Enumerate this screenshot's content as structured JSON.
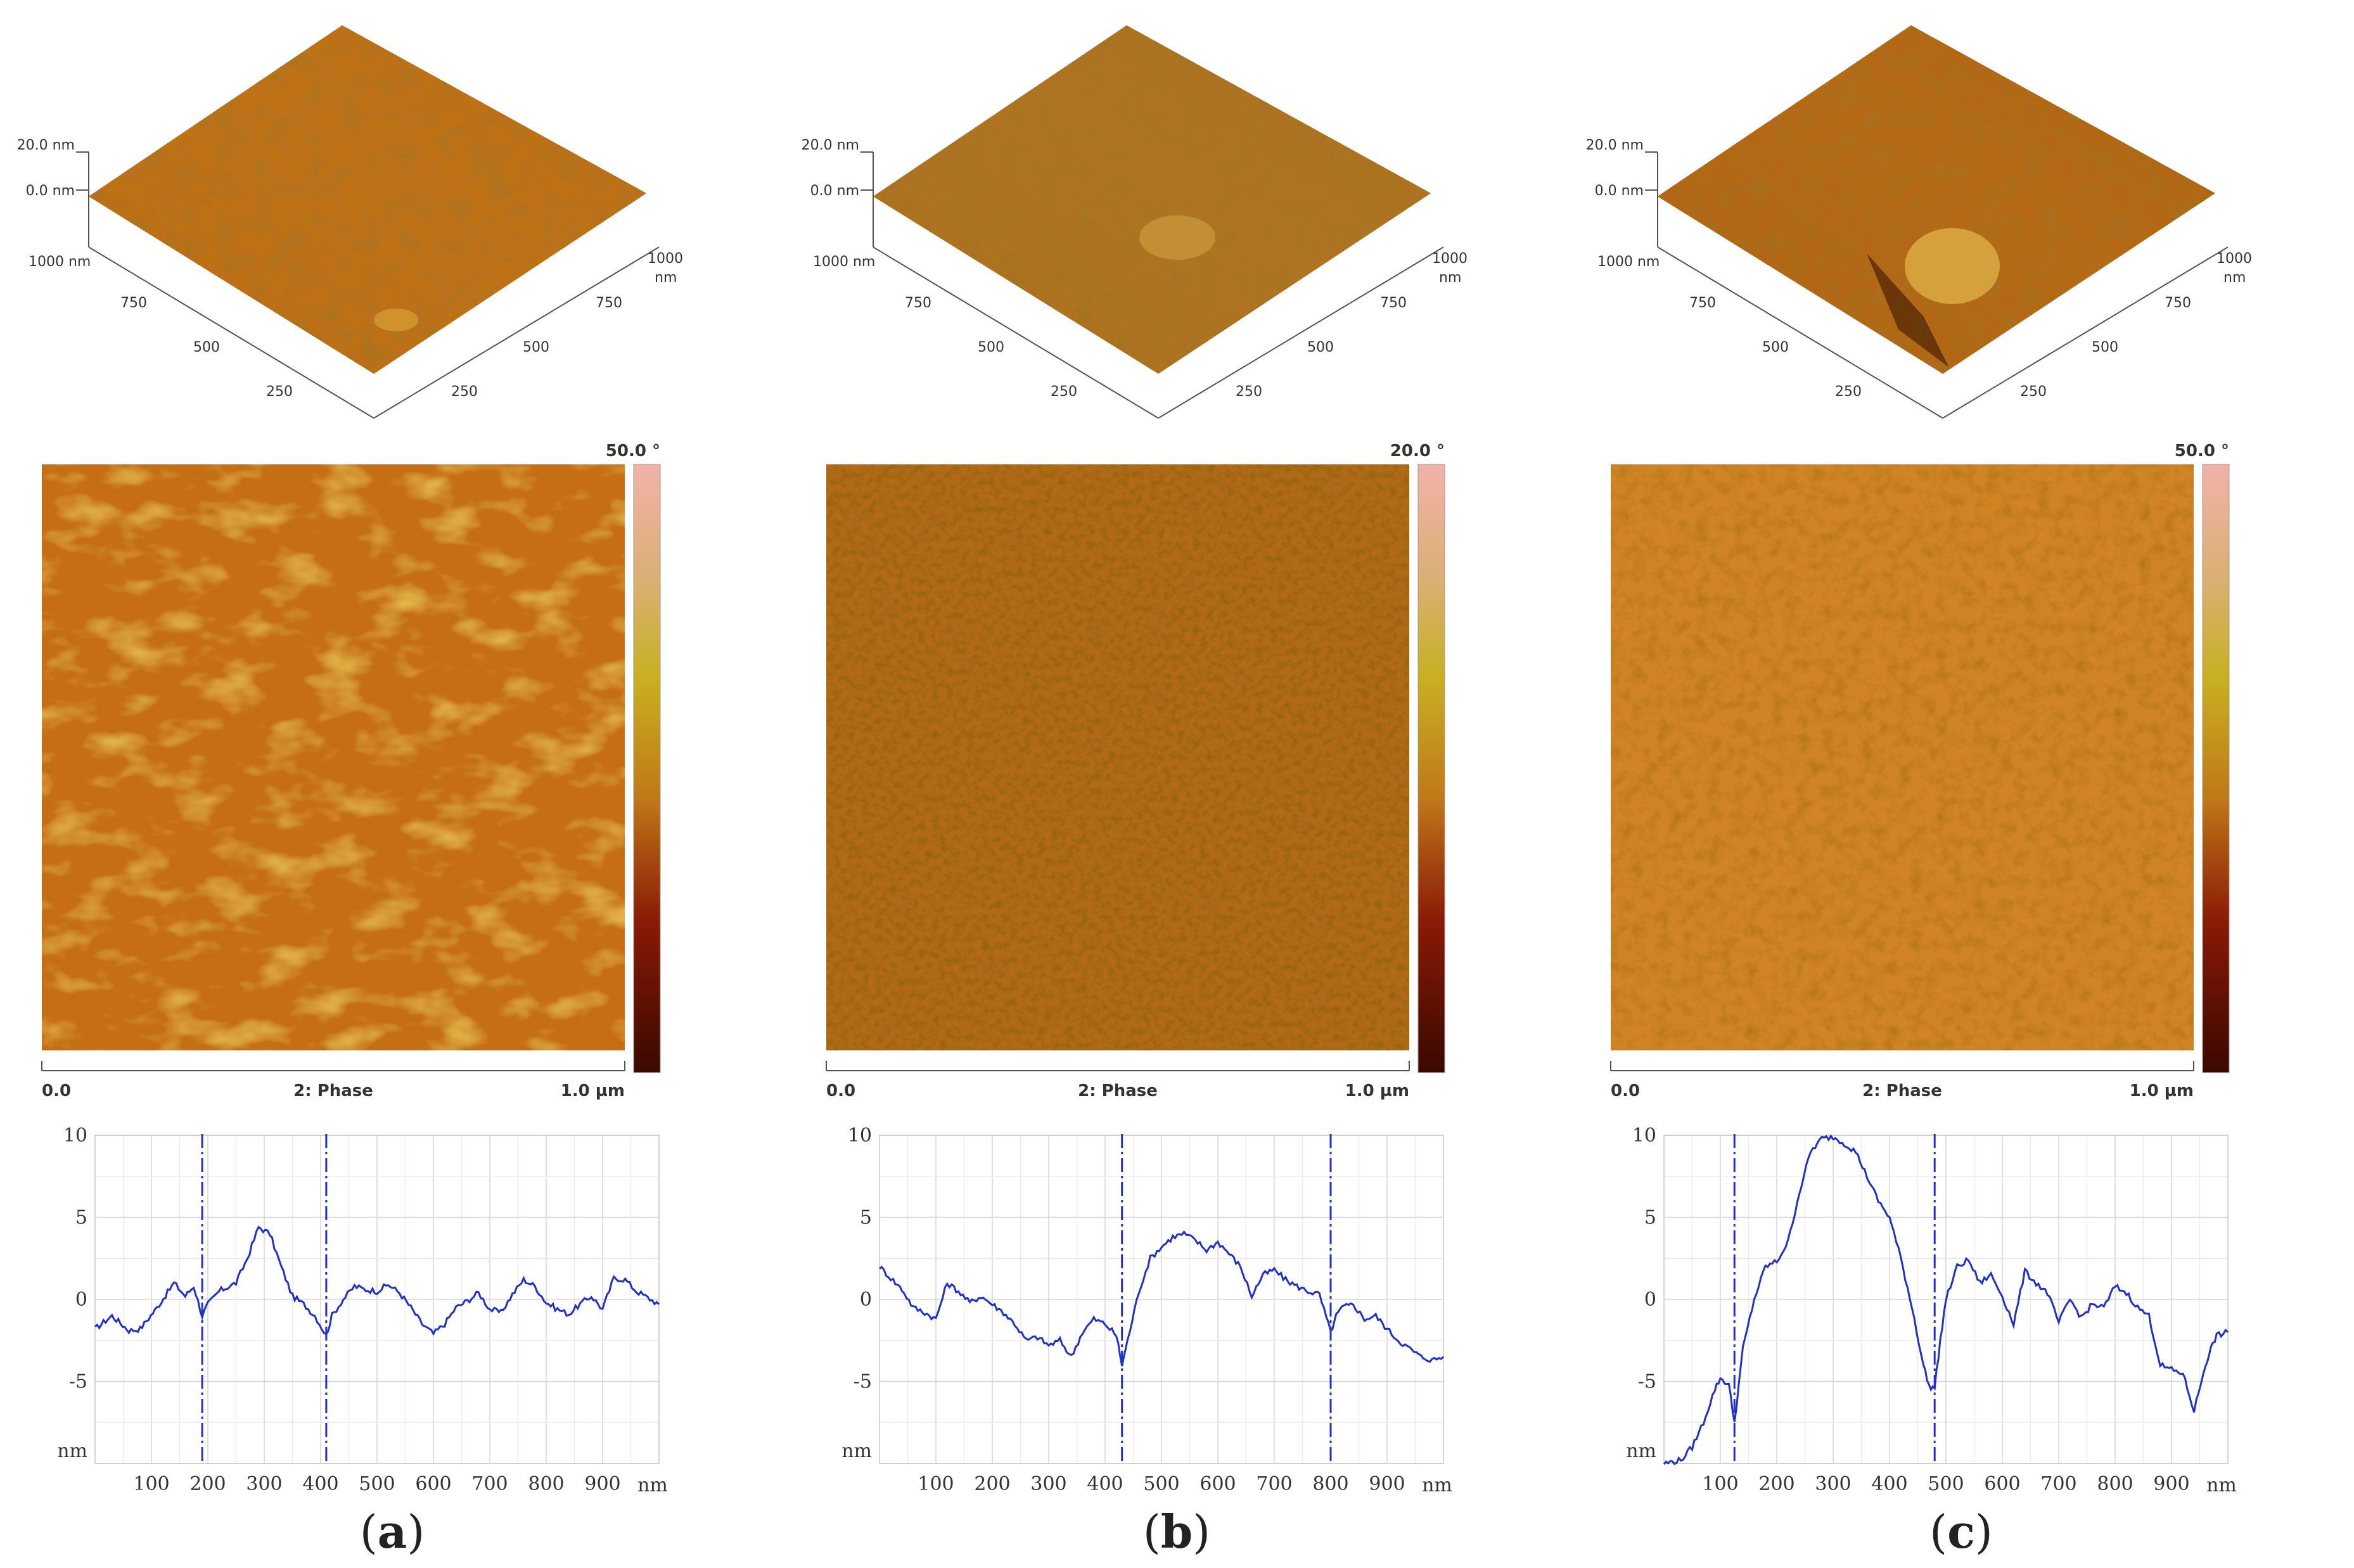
{
  "panels": [
    {
      "id": "a",
      "caption": {
        "open": "(",
        "letter": "a",
        "close": ")"
      },
      "surface3d": {
        "z_labels": [
          "20.0 nm",
          "0.0 nm"
        ],
        "left_axis_labels": [
          "1000 nm",
          "750",
          "500",
          "250"
        ],
        "right_axis_labels": [
          "1000",
          "nm",
          "750",
          "500",
          "250"
        ],
        "colors": [
          "#5a2a04",
          "#9a4a08",
          "#c07316",
          "#e0a83a"
        ]
      },
      "phase": {
        "scale_max": "50.0 °",
        "x_start": "0.0",
        "x_end": "1.0 µm",
        "title": "2: Phase",
        "style": "smooth"
      },
      "chart_data": {
        "type": "line",
        "ylabel": "nm",
        "xlabel": "nm",
        "xlim": [
          0,
          1000
        ],
        "ylim": [
          -10,
          10
        ],
        "yticks": [
          "10",
          "5",
          "0",
          "-5"
        ],
        "xticks": [
          "100",
          "200",
          "300",
          "400",
          "500",
          "600",
          "700",
          "800",
          "900"
        ],
        "cursors": [
          190,
          410
        ],
        "x": [
          0,
          30,
          60,
          80,
          110,
          140,
          160,
          175,
          190,
          200,
          220,
          250,
          270,
          290,
          310,
          330,
          350,
          370,
          390,
          410,
          420,
          440,
          460,
          480,
          500,
          520,
          540,
          560,
          580,
          600,
          620,
          640,
          660,
          680,
          700,
          720,
          740,
          760,
          780,
          800,
          820,
          840,
          860,
          880,
          900,
          920,
          940,
          960,
          980,
          1000
        ],
        "y": [
          -1.8,
          -1.0,
          -1.9,
          -1.8,
          -0.5,
          1.0,
          0.2,
          0.8,
          -1.0,
          -0.3,
          0.5,
          1.0,
          2.5,
          4.4,
          4.0,
          2.0,
          0.2,
          -0.3,
          -1.0,
          -2.2,
          -1.0,
          0.0,
          0.8,
          0.6,
          0.5,
          0.9,
          0.4,
          -0.5,
          -1.5,
          -2.1,
          -1.5,
          -0.5,
          -0.1,
          0.4,
          -0.6,
          -0.8,
          0.3,
          1.2,
          0.8,
          -0.2,
          -0.6,
          -0.9,
          -0.3,
          0.2,
          -0.6,
          1.3,
          1.2,
          0.5,
          0.1,
          -0.3
        ]
      }
    },
    {
      "id": "b",
      "caption": {
        "open": "(",
        "letter": "b",
        "close": ")"
      },
      "surface3d": {
        "z_labels": [
          "20.0 nm",
          "0.0 nm"
        ],
        "left_axis_labels": [
          "1000 nm",
          "750",
          "500",
          "250"
        ],
        "right_axis_labels": [
          "1000",
          "nm",
          "750",
          "500",
          "250"
        ],
        "colors": [
          "#4e2a06",
          "#8a4c0c",
          "#b07420",
          "#d8aa48"
        ]
      },
      "phase": {
        "scale_max": "20.0 °",
        "x_start": "0.0",
        "x_end": "1.0 µm",
        "title": "2: Phase",
        "style": "grainy"
      },
      "chart_data": {
        "type": "line",
        "ylabel": "nm",
        "xlabel": "nm",
        "xlim": [
          0,
          1000
        ],
        "ylim": [
          -10,
          10
        ],
        "yticks": [
          "10",
          "5",
          "0",
          "-5"
        ],
        "xticks": [
          "100",
          "200",
          "300",
          "400",
          "500",
          "600",
          "700",
          "800",
          "900"
        ],
        "cursors": [
          430,
          800
        ],
        "x": [
          0,
          20,
          40,
          60,
          80,
          100,
          120,
          140,
          160,
          180,
          200,
          220,
          240,
          260,
          280,
          300,
          320,
          340,
          360,
          380,
          400,
          420,
          430,
          440,
          460,
          480,
          500,
          520,
          540,
          560,
          580,
          600,
          620,
          640,
          660,
          680,
          700,
          720,
          740,
          760,
          780,
          800,
          810,
          820,
          840,
          860,
          880,
          900,
          920,
          940,
          960,
          980,
          1000
        ],
        "y": [
          2.0,
          1.3,
          0.6,
          -0.5,
          -0.8,
          -1.2,
          1.0,
          0.5,
          -0.2,
          0.2,
          -0.3,
          -0.8,
          -1.5,
          -2.5,
          -2.3,
          -2.8,
          -2.5,
          -3.5,
          -2.0,
          -1.2,
          -1.5,
          -2.2,
          -4.0,
          -2.5,
          0.5,
          2.5,
          3.2,
          3.8,
          4.0,
          3.6,
          3.0,
          3.5,
          2.8,
          2.0,
          0.2,
          1.5,
          1.8,
          1.2,
          0.8,
          0.5,
          0.3,
          -2.0,
          -1.0,
          -0.5,
          -0.3,
          -1.2,
          -1.0,
          -1.8,
          -2.5,
          -3.0,
          -3.5,
          -3.7,
          -3.5
        ]
      }
    },
    {
      "id": "c",
      "caption": {
        "open": "(",
        "letter": "c",
        "close": ")"
      },
      "surface3d": {
        "z_labels": [
          "20.0 nm",
          "0.0 nm"
        ],
        "left_axis_labels": [
          "1000 nm",
          "750",
          "500",
          "250"
        ],
        "right_axis_labels": [
          "1000",
          "nm",
          "750",
          "500",
          "250"
        ],
        "colors": [
          "#3c1602",
          "#7c3806",
          "#b66a14",
          "#dcaa44"
        ]
      },
      "phase": {
        "scale_max": "50.0 °",
        "x_start": "0.0",
        "x_end": "1.0 µm",
        "title": "2: Phase",
        "style": "fine"
      },
      "chart_data": {
        "type": "line",
        "ylabel": "nm",
        "xlabel": "nm",
        "xlim": [
          0,
          1000
        ],
        "ylim": [
          -10,
          10
        ],
        "yticks": [
          "10",
          "5",
          "0",
          "-5"
        ],
        "xticks": [
          "100",
          "200",
          "300",
          "400",
          "500",
          "600",
          "700",
          "800",
          "900"
        ],
        "cursors": [
          125,
          480
        ],
        "x": [
          0,
          30,
          50,
          70,
          90,
          100,
          115,
          125,
          140,
          160,
          180,
          200,
          220,
          240,
          260,
          280,
          300,
          320,
          340,
          360,
          380,
          400,
          420,
          440,
          460,
          470,
          480,
          490,
          500,
          520,
          540,
          560,
          580,
          600,
          620,
          640,
          660,
          680,
          700,
          720,
          740,
          760,
          780,
          800,
          820,
          840,
          860,
          880,
          900,
          920,
          940,
          960,
          970,
          980,
          1000
        ],
        "y": [
          -10.0,
          -9.8,
          -9.0,
          -7.5,
          -5.5,
          -4.8,
          -5.2,
          -7.5,
          -3.0,
          0.0,
          2.0,
          2.3,
          3.5,
          6.5,
          9.0,
          9.8,
          9.9,
          9.5,
          9.0,
          7.5,
          6.0,
          5.0,
          2.5,
          -0.5,
          -4.0,
          -5.3,
          -5.4,
          -2.5,
          0.0,
          2.0,
          2.4,
          1.0,
          1.5,
          0.2,
          -1.5,
          1.7,
          1.0,
          0.4,
          -1.4,
          0.0,
          -1.1,
          -0.3,
          -0.5,
          0.8,
          0.4,
          -0.5,
          -1.0,
          -4.0,
          -4.3,
          -4.5,
          -6.8,
          -4.0,
          -3.0,
          -2.2,
          -2.0
        ]
      }
    }
  ]
}
